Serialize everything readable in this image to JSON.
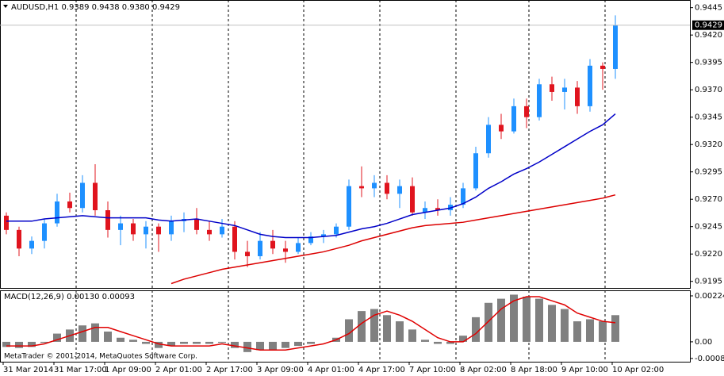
{
  "chart_data": [
    {
      "type": "candlestick",
      "title": "AUDUSD,H1  0.9389 0.9438 0.9380 0.9429",
      "categories": [
        "31 Mar 2014",
        null,
        null,
        null,
        "31 Mar 17:00",
        null,
        null,
        null,
        "1 Apr 09:00",
        null,
        null,
        null,
        "2 Apr 01:00",
        null,
        null,
        null,
        "2 Apr 17:00",
        null,
        null,
        null,
        "3 Apr 09:00",
        null,
        null,
        null,
        "4 Apr 01:00",
        null,
        null,
        null,
        "4 Apr 17:00",
        null,
        null,
        null,
        "7 Apr 10:00",
        null,
        null,
        null,
        "8 Apr 02:00",
        null,
        null,
        null,
        "8 Apr 18:00",
        null,
        null,
        null,
        "9 Apr 10:00",
        null,
        null,
        null,
        "10 Apr 02:00"
      ],
      "open": [
        0.9255,
        0.9242,
        0.9225,
        0.9232,
        0.9248,
        0.9268,
        0.9262,
        0.9285,
        0.926,
        0.9242,
        0.9248,
        0.9238,
        0.9245,
        0.9238,
        0.925,
        0.9252,
        0.9242,
        0.9238,
        0.9245,
        0.9222,
        0.9218,
        0.9232,
        0.9225,
        0.9222,
        0.923,
        0.9236,
        0.9238,
        0.9245,
        0.9282,
        0.928,
        0.9285,
        0.9275,
        0.9282,
        0.9258,
        0.9262,
        0.926,
        0.9265,
        0.928,
        0.9312,
        0.9338,
        0.9332,
        0.9355,
        0.9345,
        0.9375,
        0.9368,
        0.9372,
        0.9355,
        0.9392,
        0.9389
      ],
      "high": [
        0.9258,
        0.9245,
        0.9236,
        0.9252,
        0.9275,
        0.9276,
        0.9292,
        0.9302,
        0.9268,
        0.9255,
        0.9252,
        0.925,
        0.9248,
        0.9255,
        0.9258,
        0.9262,
        0.925,
        0.9252,
        0.925,
        0.9232,
        0.924,
        0.9242,
        0.9232,
        0.9235,
        0.924,
        0.9242,
        0.9248,
        0.9288,
        0.93,
        0.9292,
        0.9292,
        0.9288,
        0.929,
        0.9268,
        0.927,
        0.9272,
        0.9285,
        0.9318,
        0.9345,
        0.9348,
        0.9362,
        0.9362,
        0.938,
        0.9382,
        0.938,
        0.9378,
        0.9398,
        0.9395,
        0.9438
      ],
      "low": [
        0.9238,
        0.9218,
        0.922,
        0.9225,
        0.9245,
        0.9258,
        0.9258,
        0.9255,
        0.9235,
        0.9228,
        0.9232,
        0.9225,
        0.9222,
        0.9232,
        0.924,
        0.9238,
        0.9232,
        0.9235,
        0.9215,
        0.9208,
        0.9215,
        0.922,
        0.9212,
        0.922,
        0.9228,
        0.923,
        0.9235,
        0.9242,
        0.9272,
        0.9272,
        0.927,
        0.9262,
        0.9255,
        0.9252,
        0.9255,
        0.9255,
        0.9262,
        0.9278,
        0.9308,
        0.9325,
        0.933,
        0.9335,
        0.9342,
        0.936,
        0.9352,
        0.9348,
        0.935,
        0.937,
        0.938
      ],
      "close": [
        0.9242,
        0.9225,
        0.9232,
        0.9248,
        0.9268,
        0.9262,
        0.9285,
        0.926,
        0.9242,
        0.9248,
        0.9238,
        0.9245,
        0.9238,
        0.925,
        0.9252,
        0.9242,
        0.9238,
        0.9245,
        0.9222,
        0.9218,
        0.9232,
        0.9225,
        0.9222,
        0.923,
        0.9236,
        0.9238,
        0.9245,
        0.9282,
        0.928,
        0.9285,
        0.9275,
        0.9282,
        0.9258,
        0.9262,
        0.926,
        0.9265,
        0.928,
        0.9312,
        0.9338,
        0.9332,
        0.9355,
        0.9345,
        0.9375,
        0.9368,
        0.9372,
        0.9355,
        0.9392,
        0.9389,
        0.9429
      ],
      "up_color": "#1e90ff",
      "down_color": "#e0141e",
      "overlays": [
        {
          "color": "#0000c8",
          "values": [
            0.925,
            0.925,
            0.925,
            0.9252,
            0.9253,
            0.9254,
            0.9255,
            0.9254,
            0.9253,
            0.9253,
            0.9253,
            0.9253,
            0.9251,
            0.925,
            0.9251,
            0.9252,
            0.925,
            0.9248,
            0.9246,
            0.9242,
            0.9238,
            0.9236,
            0.9235,
            0.9235,
            0.9235,
            0.9236,
            0.9237,
            0.924,
            0.9243,
            0.9245,
            0.9248,
            0.9252,
            0.9256,
            0.9258,
            0.926,
            0.9262,
            0.9266,
            0.9272,
            0.928,
            0.9286,
            0.9293,
            0.9298,
            0.9304,
            0.9311,
            0.9318,
            0.9325,
            0.9332,
            0.9338,
            0.9348
          ]
        },
        {
          "color": "#dc0000",
          "values": [
            null,
            null,
            null,
            null,
            null,
            null,
            null,
            null,
            null,
            null,
            null,
            null,
            null,
            0.9193,
            0.9197,
            0.92,
            0.9203,
            0.9206,
            0.9208,
            0.921,
            0.9212,
            0.9214,
            0.9216,
            0.9218,
            0.922,
            0.9222,
            0.9225,
            0.9228,
            0.9232,
            0.9235,
            0.9238,
            0.9241,
            0.9244,
            0.9246,
            0.9247,
            0.9248,
            0.9249,
            0.9251,
            0.9253,
            0.9255,
            0.9257,
            0.9259,
            0.9261,
            0.9263,
            0.9265,
            0.9267,
            0.9269,
            0.9271,
            0.9274
          ]
        }
      ],
      "last_price": {
        "value": 0.9429,
        "label": "0.9429"
      },
      "ylim": [
        0.9189,
        0.9452
      ],
      "yticks": [
        0.9445,
        {
          "value": 0.942,
          "label": "0.9420"
        },
        0.9395,
        {
          "value": 0.937,
          "label": "0.9370"
        },
        0.9345,
        {
          "value": 0.932,
          "label": "0.9320"
        },
        0.9295,
        {
          "value": 0.927,
          "label": "0.9270"
        },
        0.9245,
        {
          "value": 0.922,
          "label": "0.9220"
        },
        0.9195
      ]
    },
    {
      "type": "macd",
      "title": "MACD(12,26,9) 0.00130 0.00093",
      "footer": "MetaTrader © 2001-2014, MetaQuotes Software Corp.",
      "histogram": {
        "color": "#808080",
        "values": [
          -0.00025,
          -0.0003,
          -0.00025,
          -5e-05,
          0.0004,
          0.0006,
          0.0008,
          0.0009,
          0.0005,
          0.0002,
          0.0001,
          -0.0001,
          -0.0003,
          -0.0002,
          -0.0001,
          -0.0001,
          -0.0001,
          -5e-05,
          -0.0003,
          -0.0005,
          -0.0004,
          -0.0004,
          -0.0003,
          -0.0002,
          -0.0001,
          0,
          0.0002,
          0.0011,
          0.0015,
          0.0016,
          0.0013,
          0.001,
          0.0006,
          0.0001,
          -0.0001,
          -0.0001,
          0.0003,
          0.0012,
          0.0019,
          0.0021,
          0.0023,
          0.0022,
          0.0021,
          0.0018,
          0.0016,
          0.001,
          0.0011,
          0.001,
          0.0013
        ]
      },
      "signal": {
        "color": "#e00000",
        "values": [
          -0.0002,
          -0.0002,
          -0.0002,
          -0.0001,
          0.0001,
          0.0003,
          0.0005,
          0.0007,
          0.0007,
          0.0005,
          0.0003,
          0.0001,
          -0.0001,
          -0.0002,
          -0.0002,
          -0.0002,
          -0.0002,
          -0.0001,
          -0.0002,
          -0.0003,
          -0.0004,
          -0.0004,
          -0.0004,
          -0.0003,
          -0.0002,
          -0.0001,
          0.0001,
          0.0004,
          0.0009,
          0.0013,
          0.0015,
          0.0013,
          0.001,
          0.0006,
          0.0002,
          0,
          0,
          0.0004,
          0.001,
          0.0016,
          0.002,
          0.0022,
          0.0022,
          0.002,
          0.0018,
          0.0014,
          0.0012,
          0.001,
          0.00093
        ]
      },
      "ylim": [
        -0.00097,
        0.00251
      ],
      "yticks": [
        0.00224,
        {
          "value": 0,
          "label": "0.00"
        },
        -0.00081
      ]
    }
  ]
}
